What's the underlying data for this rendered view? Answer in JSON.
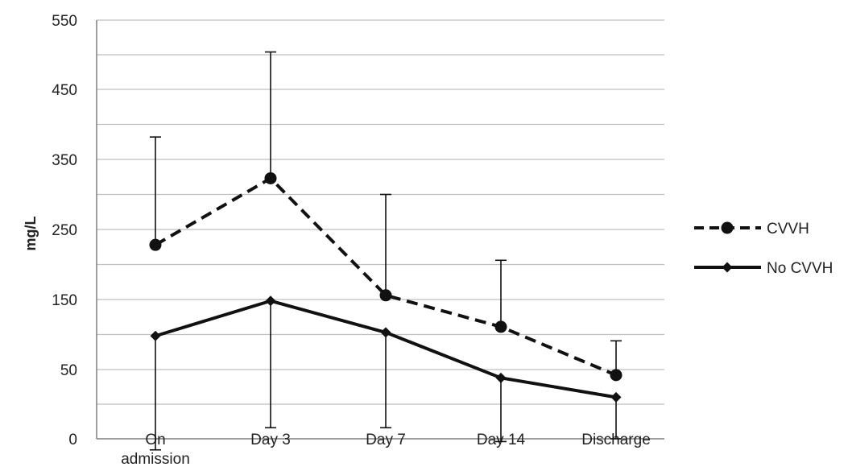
{
  "chart_data": {
    "type": "line",
    "categories": [
      [
        "On",
        "admission"
      ],
      [
        "Day 3"
      ],
      [
        "Day 7"
      ],
      [
        "Day 14"
      ],
      [
        "Discharge"
      ]
    ],
    "y_tick_labels": [
      "0",
      "50",
      "150",
      "250",
      "350",
      "450",
      "550"
    ],
    "y_tick_values": [
      0,
      50,
      150,
      250,
      350,
      450,
      550
    ],
    "ylabel": "mg/L",
    "ylim": [
      0,
      550
    ],
    "grid": true,
    "legend_position": "right",
    "series": [
      {
        "name": "CVVH",
        "style": "dashed",
        "marker": "circle",
        "values": [
          228,
          323,
          156,
          111,
          46
        ],
        "error_upper": [
          382,
          504,
          300,
          206,
          91
        ]
      },
      {
        "name": "No CVVH",
        "style": "solid",
        "marker": "diamond",
        "values": [
          98,
          148,
          103,
          44,
          30
        ],
        "error_lower": [
          -8,
          8,
          8,
          -2,
          0
        ]
      }
    ],
    "colors": {
      "line": "#111111",
      "grid": "#bfbfbf",
      "axis": "#7f7f7f"
    }
  }
}
